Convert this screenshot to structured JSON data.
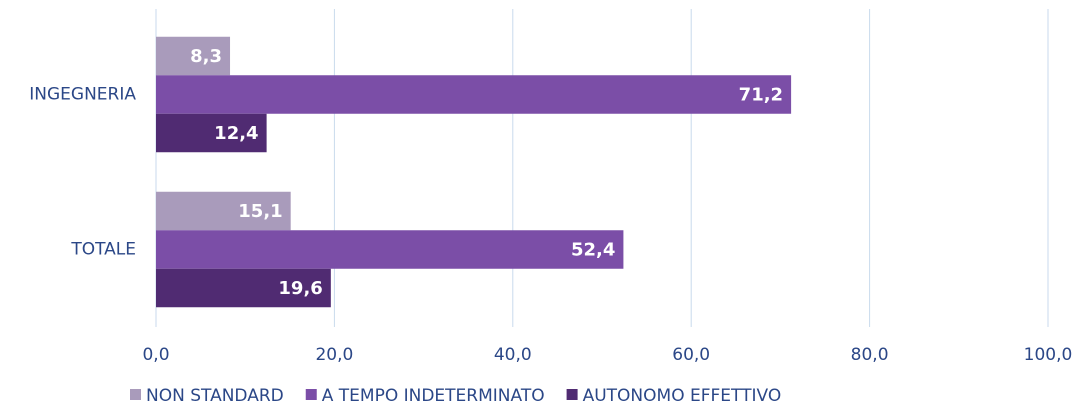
{
  "chart_data": {
    "type": "hbar",
    "categories": [
      "INGEGNERIA",
      "TOTALE"
    ],
    "series": [
      {
        "name": "NON STANDARD",
        "color": "#a99bbb",
        "values": [
          8.3,
          15.1
        ],
        "value_labels": [
          "8,3",
          "15,1"
        ]
      },
      {
        "name": "A TEMPO INDETERMINATO",
        "color": "#7b4ea7",
        "values": [
          71.2,
          52.4
        ],
        "value_labels": [
          "71,2",
          "52,4"
        ]
      },
      {
        "name": "AUTONOMO EFFETTIVO",
        "color": "#502b72",
        "values": [
          12.4,
          19.6
        ],
        "value_labels": [
          "12,4",
          "19,6"
        ]
      }
    ],
    "xlim": [
      0,
      100
    ],
    "xticks": [
      {
        "value": 0,
        "label": "0,0"
      },
      {
        "value": 20,
        "label": "20,0"
      },
      {
        "value": 40,
        "label": "40,0"
      },
      {
        "value": 60,
        "label": "60,0"
      },
      {
        "value": 80,
        "label": "80,0"
      },
      {
        "value": 100,
        "label": "100,0"
      }
    ],
    "grid": true,
    "legend": "bottom"
  }
}
